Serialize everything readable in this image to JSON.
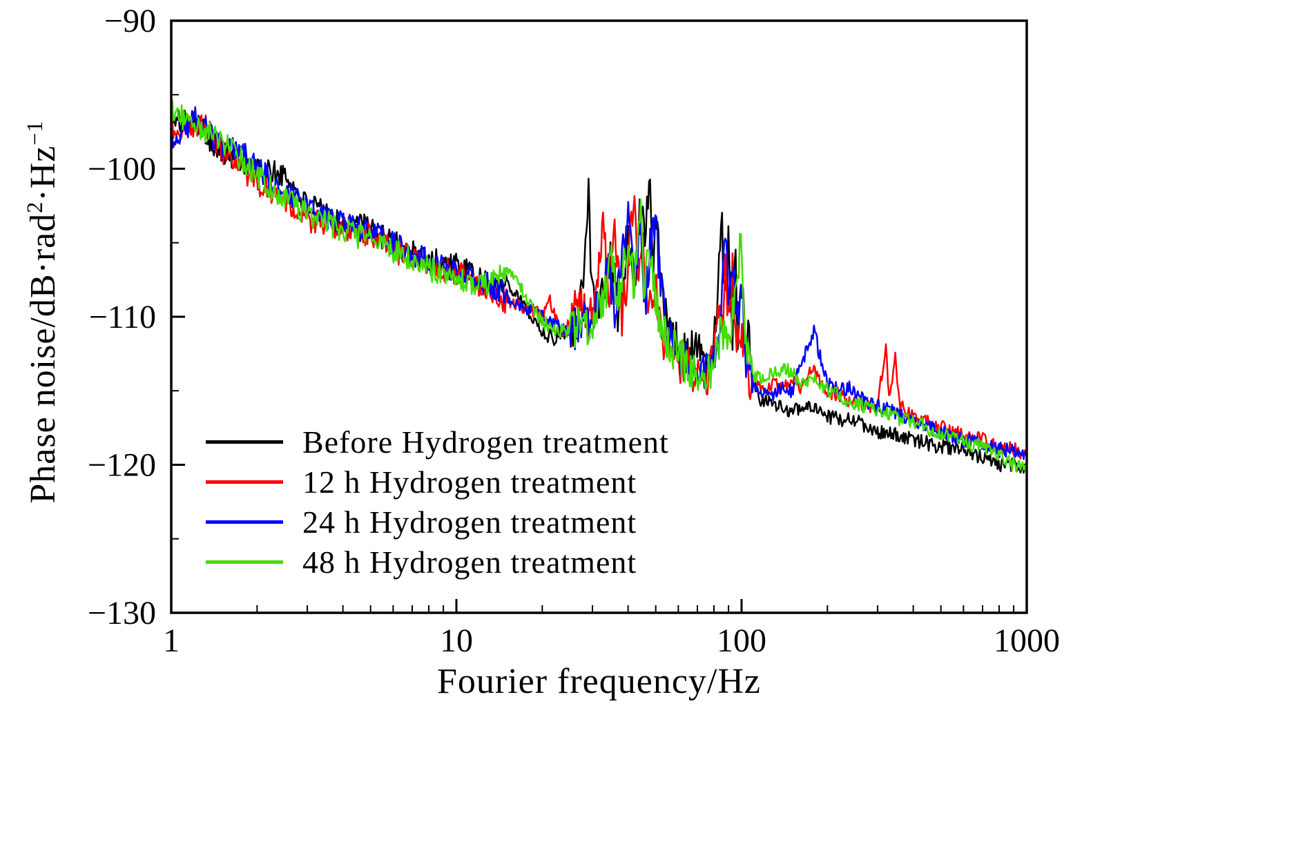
{
  "labels": {
    "xlabel": "Fourier frequency/Hz",
    "ylabel": {
      "p1": "Phase noise/dB·rad",
      "sup1": "2",
      "p2": "·Hz",
      "sup2": "−1"
    }
  },
  "chart_data": {
    "type": "line",
    "title": "",
    "xlabel": "Fourier frequency/Hz",
    "ylabel": "Phase noise/dB·rad²·Hz⁻¹",
    "xscale": "log",
    "xlim": [
      1,
      1000
    ],
    "ylim": [
      -130,
      -90
    ],
    "grid": false,
    "legend_position": "lower-left",
    "x_ticks": [
      {
        "v": 1,
        "label": "1"
      },
      {
        "v": 10,
        "label": "10"
      },
      {
        "v": 100,
        "label": "100"
      },
      {
        "v": 1000,
        "label": "1000"
      }
    ],
    "y_ticks": [
      {
        "v": -90,
        "label": "−90"
      },
      {
        "v": -100,
        "label": "−100"
      },
      {
        "v": -110,
        "label": "−110"
      },
      {
        "v": -120,
        "label": "−120"
      },
      {
        "v": -130,
        "label": "−130"
      }
    ],
    "y_minor_step": 5,
    "samples": 820,
    "noise": {
      "base": 0.5,
      "zones": [
        {
          "from": 1,
          "to": 15,
          "amp": 0.85
        },
        {
          "from": 25,
          "to": 110,
          "amp": 1.45
        }
      ]
    },
    "series": [
      {
        "name": "Before Hydrogen treatment",
        "color": "#000000",
        "seed": 101,
        "anchors": [
          [
            1,
            -97
          ],
          [
            1.2,
            -96.5
          ],
          [
            1.5,
            -99
          ],
          [
            2,
            -100
          ],
          [
            2.5,
            -100.5
          ],
          [
            3,
            -102.5
          ],
          [
            4,
            -103.5
          ],
          [
            5,
            -104
          ],
          [
            6,
            -105
          ],
          [
            8,
            -106
          ],
          [
            10,
            -106.5
          ],
          [
            12,
            -107.5
          ],
          [
            14,
            -108
          ],
          [
            15,
            -107.5
          ],
          [
            17,
            -109
          ],
          [
            20,
            -111
          ],
          [
            22,
            -111.5
          ],
          [
            24,
            -111
          ],
          [
            26,
            -110.5
          ],
          [
            28,
            -108
          ],
          [
            29,
            -101
          ],
          [
            29.7,
            -107
          ],
          [
            31,
            -109
          ],
          [
            33,
            -108
          ],
          [
            35,
            -106
          ],
          [
            37,
            -110
          ],
          [
            40,
            -105
          ],
          [
            42,
            -108
          ],
          [
            44,
            -103
          ],
          [
            46,
            -104
          ],
          [
            47.5,
            -100
          ],
          [
            49,
            -106
          ],
          [
            50,
            -102
          ],
          [
            52,
            -107
          ],
          [
            55,
            -111
          ],
          [
            60,
            -112
          ],
          [
            65,
            -112.5
          ],
          [
            70,
            -112
          ],
          [
            75,
            -113
          ],
          [
            80,
            -112
          ],
          [
            83,
            -107
          ],
          [
            85,
            -102
          ],
          [
            87,
            -109
          ],
          [
            90,
            -105
          ],
          [
            93,
            -111
          ],
          [
            95,
            -104
          ],
          [
            97,
            -112
          ],
          [
            100,
            -107
          ],
          [
            103,
            -112
          ],
          [
            105,
            -110
          ],
          [
            108,
            -114
          ],
          [
            115,
            -115.5
          ],
          [
            130,
            -116
          ],
          [
            150,
            -116.3
          ],
          [
            170,
            -116
          ],
          [
            200,
            -116.8
          ],
          [
            250,
            -117
          ],
          [
            300,
            -117.8
          ],
          [
            350,
            -118
          ],
          [
            400,
            -118.3
          ],
          [
            500,
            -118.8
          ],
          [
            600,
            -119
          ],
          [
            700,
            -119.5
          ],
          [
            800,
            -120
          ],
          [
            900,
            -120
          ],
          [
            1000,
            -120.3
          ]
        ]
      },
      {
        "name": "12 h Hydrogen treatment",
        "color": "#ff0000",
        "seed": 202,
        "anchors": [
          [
            1,
            -97.5
          ],
          [
            1.3,
            -97
          ],
          [
            1.6,
            -99.5
          ],
          [
            2,
            -101
          ],
          [
            2.5,
            -102
          ],
          [
            3,
            -103.5
          ],
          [
            4,
            -104
          ],
          [
            5,
            -104.5
          ],
          [
            6,
            -105.5
          ],
          [
            8,
            -106.5
          ],
          [
            10,
            -107
          ],
          [
            12,
            -107.8
          ],
          [
            15,
            -109
          ],
          [
            18,
            -109.5
          ],
          [
            20,
            -110
          ],
          [
            21,
            -108.5
          ],
          [
            23,
            -111
          ],
          [
            25,
            -110.5
          ],
          [
            27,
            -109
          ],
          [
            29,
            -110.5
          ],
          [
            31,
            -108
          ],
          [
            33,
            -103.5
          ],
          [
            34,
            -109
          ],
          [
            36,
            -104
          ],
          [
            38,
            -110
          ],
          [
            40,
            -107
          ],
          [
            42,
            -101
          ],
          [
            43.5,
            -108
          ],
          [
            45,
            -105
          ],
          [
            47,
            -110
          ],
          [
            50,
            -108
          ],
          [
            52,
            -111
          ],
          [
            55,
            -112
          ],
          [
            60,
            -113
          ],
          [
            65,
            -113.5
          ],
          [
            70,
            -113.8
          ],
          [
            75,
            -114
          ],
          [
            80,
            -113
          ],
          [
            83,
            -108
          ],
          [
            85,
            -112
          ],
          [
            88,
            -106.5
          ],
          [
            90,
            -110
          ],
          [
            93,
            -107
          ],
          [
            95,
            -112
          ],
          [
            100,
            -111
          ],
          [
            105,
            -114
          ],
          [
            110,
            -114.5
          ],
          [
            120,
            -114.8
          ],
          [
            130,
            -114.5
          ],
          [
            140,
            -114.8
          ],
          [
            150,
            -114.2
          ],
          [
            160,
            -114.8
          ],
          [
            170,
            -114
          ],
          [
            180,
            -113.5
          ],
          [
            190,
            -114.5
          ],
          [
            200,
            -115
          ],
          [
            220,
            -115.3
          ],
          [
            250,
            -115.8
          ],
          [
            280,
            -116
          ],
          [
            300,
            -116
          ],
          [
            320,
            -112
          ],
          [
            330,
            -115.5
          ],
          [
            345,
            -112.5
          ],
          [
            360,
            -116
          ],
          [
            400,
            -116.8
          ],
          [
            500,
            -117.5
          ],
          [
            600,
            -118
          ],
          [
            700,
            -118.3
          ],
          [
            800,
            -118.8
          ],
          [
            900,
            -119
          ],
          [
            1000,
            -119.2
          ]
        ]
      },
      {
        "name": "24 h Hydrogen treatment",
        "color": "#0000ff",
        "seed": 303,
        "anchors": [
          [
            1,
            -98.5
          ],
          [
            1.2,
            -96.5
          ],
          [
            1.5,
            -98.5
          ],
          [
            1.8,
            -99
          ],
          [
            2,
            -100
          ],
          [
            2.5,
            -101.5
          ],
          [
            3,
            -102.5
          ],
          [
            4,
            -103.8
          ],
          [
            5,
            -104.3
          ],
          [
            6,
            -105
          ],
          [
            8,
            -106.3
          ],
          [
            10,
            -107
          ],
          [
            12,
            -107.5
          ],
          [
            15,
            -108.5
          ],
          [
            18,
            -109.5
          ],
          [
            20,
            -110
          ],
          [
            23,
            -110.8
          ],
          [
            25,
            -111
          ],
          [
            28,
            -110.5
          ],
          [
            30,
            -110
          ],
          [
            32,
            -109
          ],
          [
            34,
            -107
          ],
          [
            36,
            -110
          ],
          [
            38,
            -106
          ],
          [
            40,
            -103.5
          ],
          [
            42,
            -108
          ],
          [
            44,
            -104
          ],
          [
            46,
            -109
          ],
          [
            48,
            -105
          ],
          [
            50,
            -103.5
          ],
          [
            52,
            -108
          ],
          [
            55,
            -111
          ],
          [
            58,
            -112
          ],
          [
            62,
            -113
          ],
          [
            68,
            -113.3
          ],
          [
            75,
            -113.5
          ],
          [
            80,
            -113
          ],
          [
            85,
            -110
          ],
          [
            88,
            -104
          ],
          [
            90,
            -109
          ],
          [
            93,
            -106
          ],
          [
            96,
            -111
          ],
          [
            100,
            -108
          ],
          [
            104,
            -113
          ],
          [
            110,
            -114.8
          ],
          [
            120,
            -115
          ],
          [
            130,
            -115.2
          ],
          [
            140,
            -114.8
          ],
          [
            150,
            -115
          ],
          [
            160,
            -113.5
          ],
          [
            170,
            -112
          ],
          [
            180,
            -111
          ],
          [
            190,
            -113
          ],
          [
            200,
            -114.5
          ],
          [
            220,
            -115
          ],
          [
            240,
            -114.8
          ],
          [
            260,
            -115.5
          ],
          [
            300,
            -116
          ],
          [
            350,
            -116.5
          ],
          [
            400,
            -117
          ],
          [
            500,
            -117.8
          ],
          [
            600,
            -118.3
          ],
          [
            700,
            -118.6
          ],
          [
            800,
            -119
          ],
          [
            900,
            -119
          ],
          [
            1000,
            -119.3
          ]
        ]
      },
      {
        "name": "48 h Hydrogen treatment",
        "color": "#44dd00",
        "seed": 404,
        "anchors": [
          [
            1,
            -96
          ],
          [
            1.3,
            -97.5
          ],
          [
            1.6,
            -98.5
          ],
          [
            2,
            -100.5
          ],
          [
            2.5,
            -102
          ],
          [
            3,
            -103
          ],
          [
            4,
            -104.2
          ],
          [
            5,
            -104.8
          ],
          [
            6,
            -105.5
          ],
          [
            8,
            -106.8
          ],
          [
            10,
            -107.3
          ],
          [
            12,
            -108
          ],
          [
            14,
            -107.5
          ],
          [
            15,
            -106.8
          ],
          [
            16,
            -107.5
          ],
          [
            18,
            -109
          ],
          [
            20,
            -110.3
          ],
          [
            23,
            -111
          ],
          [
            26,
            -110.8
          ],
          [
            30,
            -110.3
          ],
          [
            33,
            -109
          ],
          [
            35,
            -106.5
          ],
          [
            37,
            -109
          ],
          [
            40,
            -105
          ],
          [
            42,
            -108
          ],
          [
            44,
            -102
          ],
          [
            45.5,
            -108
          ],
          [
            48,
            -105
          ],
          [
            50,
            -109
          ],
          [
            53,
            -111
          ],
          [
            57,
            -112
          ],
          [
            62,
            -113
          ],
          [
            68,
            -113.5
          ],
          [
            75,
            -114
          ],
          [
            80,
            -113.5
          ],
          [
            85,
            -111
          ],
          [
            90,
            -112
          ],
          [
            95,
            -108
          ],
          [
            100,
            -105
          ],
          [
            102,
            -110
          ],
          [
            105,
            -113
          ],
          [
            110,
            -114
          ],
          [
            120,
            -114.3
          ],
          [
            130,
            -113.8
          ],
          [
            140,
            -113.5
          ],
          [
            150,
            -113.8
          ],
          [
            160,
            -114.5
          ],
          [
            180,
            -114
          ],
          [
            200,
            -115
          ],
          [
            230,
            -115.5
          ],
          [
            260,
            -116
          ],
          [
            300,
            -116.3
          ],
          [
            350,
            -116.8
          ],
          [
            400,
            -117
          ],
          [
            450,
            -117.5
          ],
          [
            500,
            -118
          ],
          [
            600,
            -118.5
          ],
          [
            700,
            -118.8
          ],
          [
            800,
            -119.3
          ],
          [
            900,
            -120
          ],
          [
            1000,
            -120
          ]
        ]
      }
    ]
  }
}
